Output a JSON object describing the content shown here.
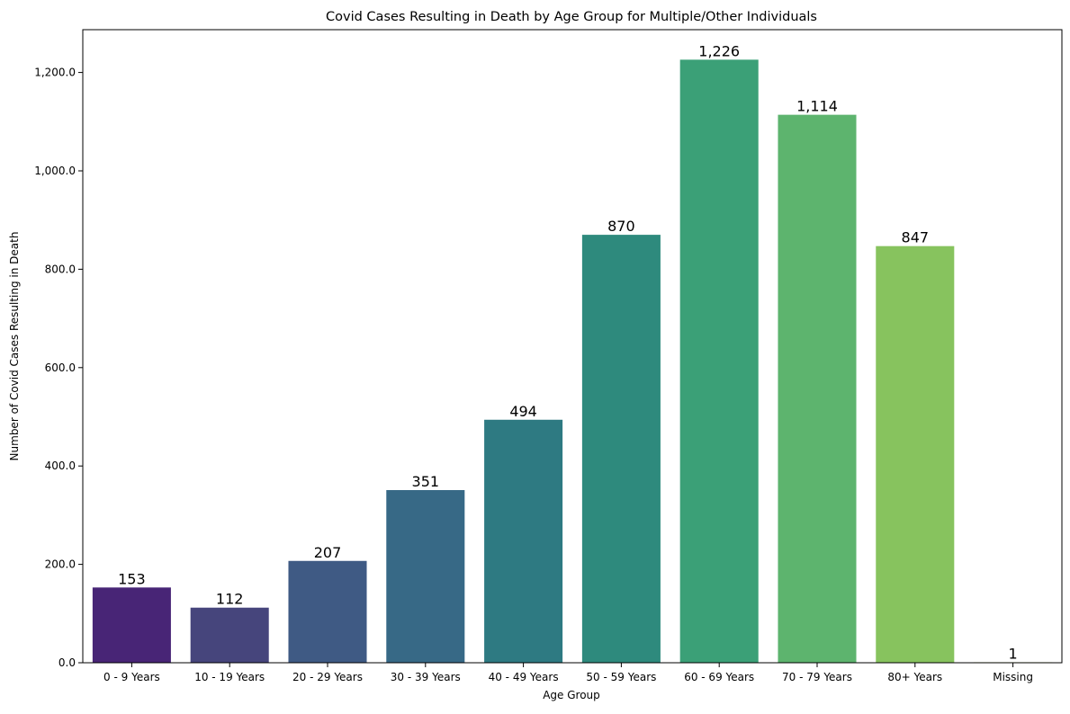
{
  "chart_data": {
    "type": "bar",
    "title": "Covid Cases Resulting in Death by Age Group for Multiple/Other Individuals",
    "xlabel": "Age Group",
    "ylabel": "Number of Covid Cases Resulting in Death",
    "categories": [
      "0 - 9 Years",
      "10 - 19 Years",
      "20 - 29 Years",
      "30 - 39 Years",
      "40 - 49 Years",
      "50 - 59 Years",
      "60 - 69 Years",
      "70 - 79 Years",
      "80+ Years",
      "Missing"
    ],
    "values": [
      153,
      112,
      207,
      351,
      494,
      870,
      1226,
      1114,
      847,
      1
    ],
    "value_labels": [
      "153",
      "112",
      "207",
      "351",
      "494",
      "870",
      "1,226",
      "1,114",
      "847",
      "1"
    ],
    "colors": [
      "#482576",
      "#46457c",
      "#3f5a84",
      "#376986",
      "#2e7a82",
      "#2e8a7d",
      "#3ba077",
      "#5db46e",
      "#87c35e",
      "#b8d12f"
    ],
    "ylim": [
      0,
      1287
    ],
    "yticks": [
      0,
      200,
      400,
      600,
      800,
      1000,
      1200
    ],
    "ytick_labels": [
      "0.0",
      "200.0",
      "400.0",
      "600.0",
      "800.0",
      "1,000.0",
      "1,200.0"
    ],
    "grid": false,
    "legend": "none"
  }
}
